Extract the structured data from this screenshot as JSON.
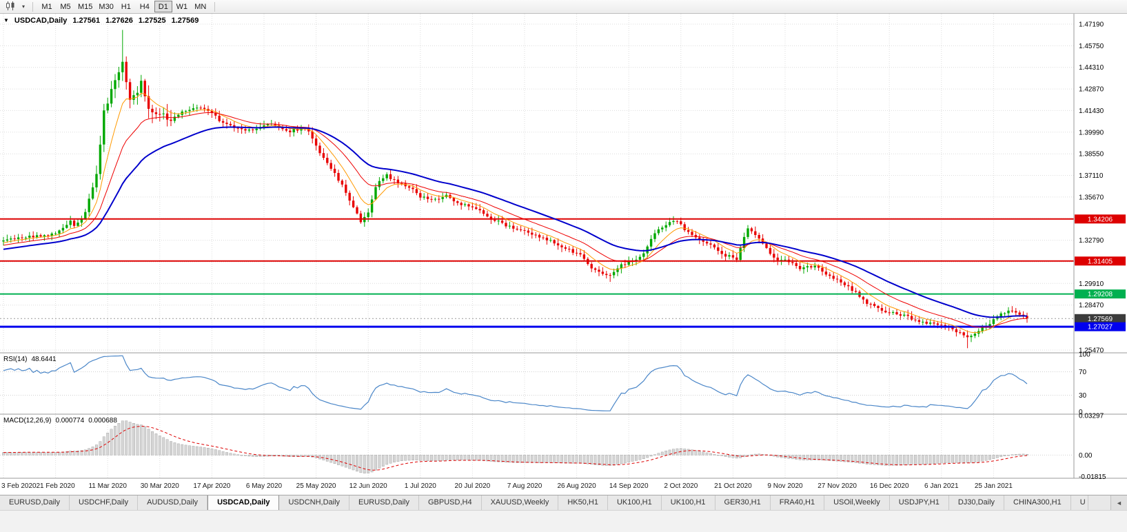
{
  "toolbar": {
    "timeframes": [
      {
        "label": "M1"
      },
      {
        "label": "M5"
      },
      {
        "label": "M15"
      },
      {
        "label": "M30"
      },
      {
        "label": "H1"
      },
      {
        "label": "H4"
      },
      {
        "label": "D1",
        "active": true
      },
      {
        "label": "W1"
      },
      {
        "label": "MN"
      }
    ]
  },
  "chart_header": {
    "symbol": "USDCAD,Daily",
    "open": "1.27561",
    "high": "1.27626",
    "low": "1.27525",
    "close": "1.27569",
    "collapse_icon": "▼"
  },
  "rsi_panel": {
    "label": "RSI(14)",
    "value": "48.6441",
    "axis_ticks": [
      {
        "v": 100,
        "label": "100"
      },
      {
        "v": 70,
        "label": "70"
      },
      {
        "v": 30,
        "label": "30"
      },
      {
        "v": 0,
        "label": "0"
      }
    ]
  },
  "macd_panel": {
    "label": "MACD(12,26,9)",
    "main_value": "0.000774",
    "signal_value": "0.000688",
    "ylim": [
      -0.01815,
      0.03297
    ],
    "axis_ticks": [
      {
        "v": 0.03297,
        "label": "0.03297"
      },
      {
        "v": 0,
        "label": "0.00"
      },
      {
        "v": -0.01815,
        "label": "-0.01815"
      }
    ]
  },
  "price_axis_ticks": [
    "1.47190",
    "1.45750",
    "1.44310",
    "1.42870",
    "1.41430",
    "1.39990",
    "1.38550",
    "1.37110",
    "1.35670",
    "1.34230",
    "1.32790",
    "1.31350",
    "1.29910",
    "1.28470",
    "1.25470"
  ],
  "levels": [
    {
      "value": 1.34206,
      "label": "1.34206",
      "color": "#dd0000",
      "width": 2
    },
    {
      "value": 1.31405,
      "label": "1.31405",
      "color": "#dd0000",
      "width": 2
    },
    {
      "value": 1.29208,
      "label": "1.29208",
      "color": "#00b050",
      "width": 2
    },
    {
      "value": 1.27569,
      "label": "1.27569",
      "color": "#999999",
      "tag_color": "#3c3c3c",
      "width": 1,
      "dashed": true
    },
    {
      "value": 1.27027,
      "label": "1.27027",
      "color": "#0000ee",
      "width": 3
    }
  ],
  "x_axis_dates": [
    "3 Feb 2020",
    "21 Feb 2020",
    "11 Mar 2020",
    "30 Mar 2020",
    "17 Apr 2020",
    "6 May 2020",
    "25 May 2020",
    "12 Jun 2020",
    "1 Jul 2020",
    "20 Jul 2020",
    "7 Aug 2020",
    "26 Aug 2020",
    "14 Sep 2020",
    "2 Oct 2020",
    "21 Oct 2020",
    "9 Nov 2020",
    "27 Nov 2020",
    "16 Dec 2020",
    "6 Jan 2021",
    "25 Jan 2021"
  ],
  "tabs": [
    {
      "label": "EURUSD,Daily"
    },
    {
      "label": "USDCHF,Daily"
    },
    {
      "label": "AUDUSD,Daily"
    },
    {
      "label": "USDCAD,Daily",
      "active": true
    },
    {
      "label": "USDCNH,Daily"
    },
    {
      "label": "EURUSD,Daily"
    },
    {
      "label": "GBPUSD,H4"
    },
    {
      "label": "XAUUSD,Weekly"
    },
    {
      "label": "HK50,H1"
    },
    {
      "label": "UK100,H1"
    },
    {
      "label": "UK100,H1"
    },
    {
      "label": "GER30,H1"
    },
    {
      "label": "FRA40,H1"
    },
    {
      "label": "USOil,Weekly"
    },
    {
      "label": "USDJPY,H1"
    },
    {
      "label": "DJ30,Daily"
    },
    {
      "label": "CHINA300,H1"
    },
    {
      "label": "U",
      "partial": true
    }
  ],
  "tab_scroll_left_icon": "◄",
  "chart_data": {
    "type": "candlestick",
    "symbol": "USDCAD",
    "timeframe": "Daily",
    "ohlc_current": {
      "open": 1.27561,
      "high": 1.27626,
      "low": 1.27525,
      "close": 1.27569
    },
    "ylim": [
      1.2547,
      1.4719
    ],
    "candles": 276,
    "candles_per_label": 14,
    "x_left": 5,
    "x_step": 5.4,
    "seed": 9,
    "noise": 0.0021,
    "prehistory": {
      "count": 60,
      "start": 1.308
    },
    "close_anchors": [
      [
        0,
        1.3273
      ],
      [
        6,
        1.3296
      ],
      [
        14,
        1.3319
      ],
      [
        18,
        1.3411
      ],
      [
        19,
        1.3365
      ],
      [
        22,
        1.3457
      ],
      [
        25,
        1.3732
      ],
      [
        27,
        1.4145
      ],
      [
        32,
        1.4443
      ],
      [
        34,
        1.4191
      ],
      [
        37,
        1.4329
      ],
      [
        39,
        1.4145
      ],
      [
        42,
        1.4122
      ],
      [
        45,
        1.4076
      ],
      [
        49,
        1.4145
      ],
      [
        53,
        1.4168
      ],
      [
        56,
        1.4122
      ],
      [
        58,
        1.4076
      ],
      [
        62,
        1.403
      ],
      [
        65,
        1.4008
      ],
      [
        69,
        1.403
      ],
      [
        72,
        1.4053
      ],
      [
        77,
        1.4008
      ],
      [
        81,
        1.403
      ],
      [
        83,
        1.3961
      ],
      [
        86,
        1.3823
      ],
      [
        90,
        1.3686
      ],
      [
        94,
        1.3502
      ],
      [
        96,
        1.341
      ],
      [
        98,
        1.3457
      ],
      [
        100,
        1.364
      ],
      [
        103,
        1.3709
      ],
      [
        106,
        1.3663
      ],
      [
        110,
        1.3617
      ],
      [
        112,
        1.3571
      ],
      [
        116,
        1.3548
      ],
      [
        119,
        1.3571
      ],
      [
        122,
        1.3525
      ],
      [
        126,
        1.3502
      ],
      [
        129,
        1.3456
      ],
      [
        132,
        1.341
      ],
      [
        136,
        1.3365
      ],
      [
        140,
        1.3341
      ],
      [
        144,
        1.3296
      ],
      [
        147,
        1.3273
      ],
      [
        151,
        1.3227
      ],
      [
        155,
        1.3181
      ],
      [
        157,
        1.3112
      ],
      [
        160,
        1.3066
      ],
      [
        163,
        1.3043
      ],
      [
        166,
        1.3112
      ],
      [
        169,
        1.3135
      ],
      [
        171,
        1.3158
      ],
      [
        175,
        1.3319
      ],
      [
        178,
        1.3388
      ],
      [
        181,
        1.3411
      ],
      [
        183,
        1.3341
      ],
      [
        186,
        1.3296
      ],
      [
        190,
        1.325
      ],
      [
        193,
        1.3181
      ],
      [
        197,
        1.3158
      ],
      [
        200,
        1.3365
      ],
      [
        202,
        1.3319
      ],
      [
        205,
        1.3227
      ],
      [
        207,
        1.3158
      ],
      [
        211,
        1.3135
      ],
      [
        214,
        1.3089
      ],
      [
        218,
        1.3112
      ],
      [
        221,
        1.3043
      ],
      [
        225,
        1.2997
      ],
      [
        229,
        1.2928
      ],
      [
        232,
        1.2859
      ],
      [
        236,
        1.2813
      ],
      [
        239,
        1.279
      ],
      [
        243,
        1.2767
      ],
      [
        246,
        1.2744
      ],
      [
        249,
        1.2721
      ],
      [
        253,
        1.2698
      ],
      [
        256,
        1.2675
      ],
      [
        259,
        1.2629
      ],
      [
        262,
        1.2675
      ],
      [
        265,
        1.2721
      ],
      [
        267,
        1.2767
      ],
      [
        270,
        1.2813
      ],
      [
        273,
        1.279
      ],
      [
        275,
        1.27569
      ]
    ],
    "wick_boosts": [
      {
        "i": 32,
        "up": 0.014
      },
      {
        "i": 163,
        "down": 0.003
      },
      {
        "i": 259,
        "down": 0.0045
      }
    ],
    "moving_averages": [
      {
        "name": "ma-fast-orange",
        "period": 8,
        "color": "#ff9900",
        "width": 1
      },
      {
        "name": "ma-mid-red",
        "period": 18,
        "color": "#ee0000",
        "width": 1
      },
      {
        "name": "ma-slow-blue",
        "period": 36,
        "color": "#0000cc",
        "width": 2
      }
    ],
    "up_color": "#00a800",
    "down_color": "#e80000",
    "grid_color": "#dcdcdc",
    "rsi": {
      "period": 14,
      "color": "#4a86c8"
    },
    "macd": {
      "fast": 12,
      "slow": 26,
      "signal": 9,
      "hist_fill": "#d6d6d6",
      "hist_stroke": "#9a9a9a",
      "signal_color": "#dd0000"
    }
  }
}
